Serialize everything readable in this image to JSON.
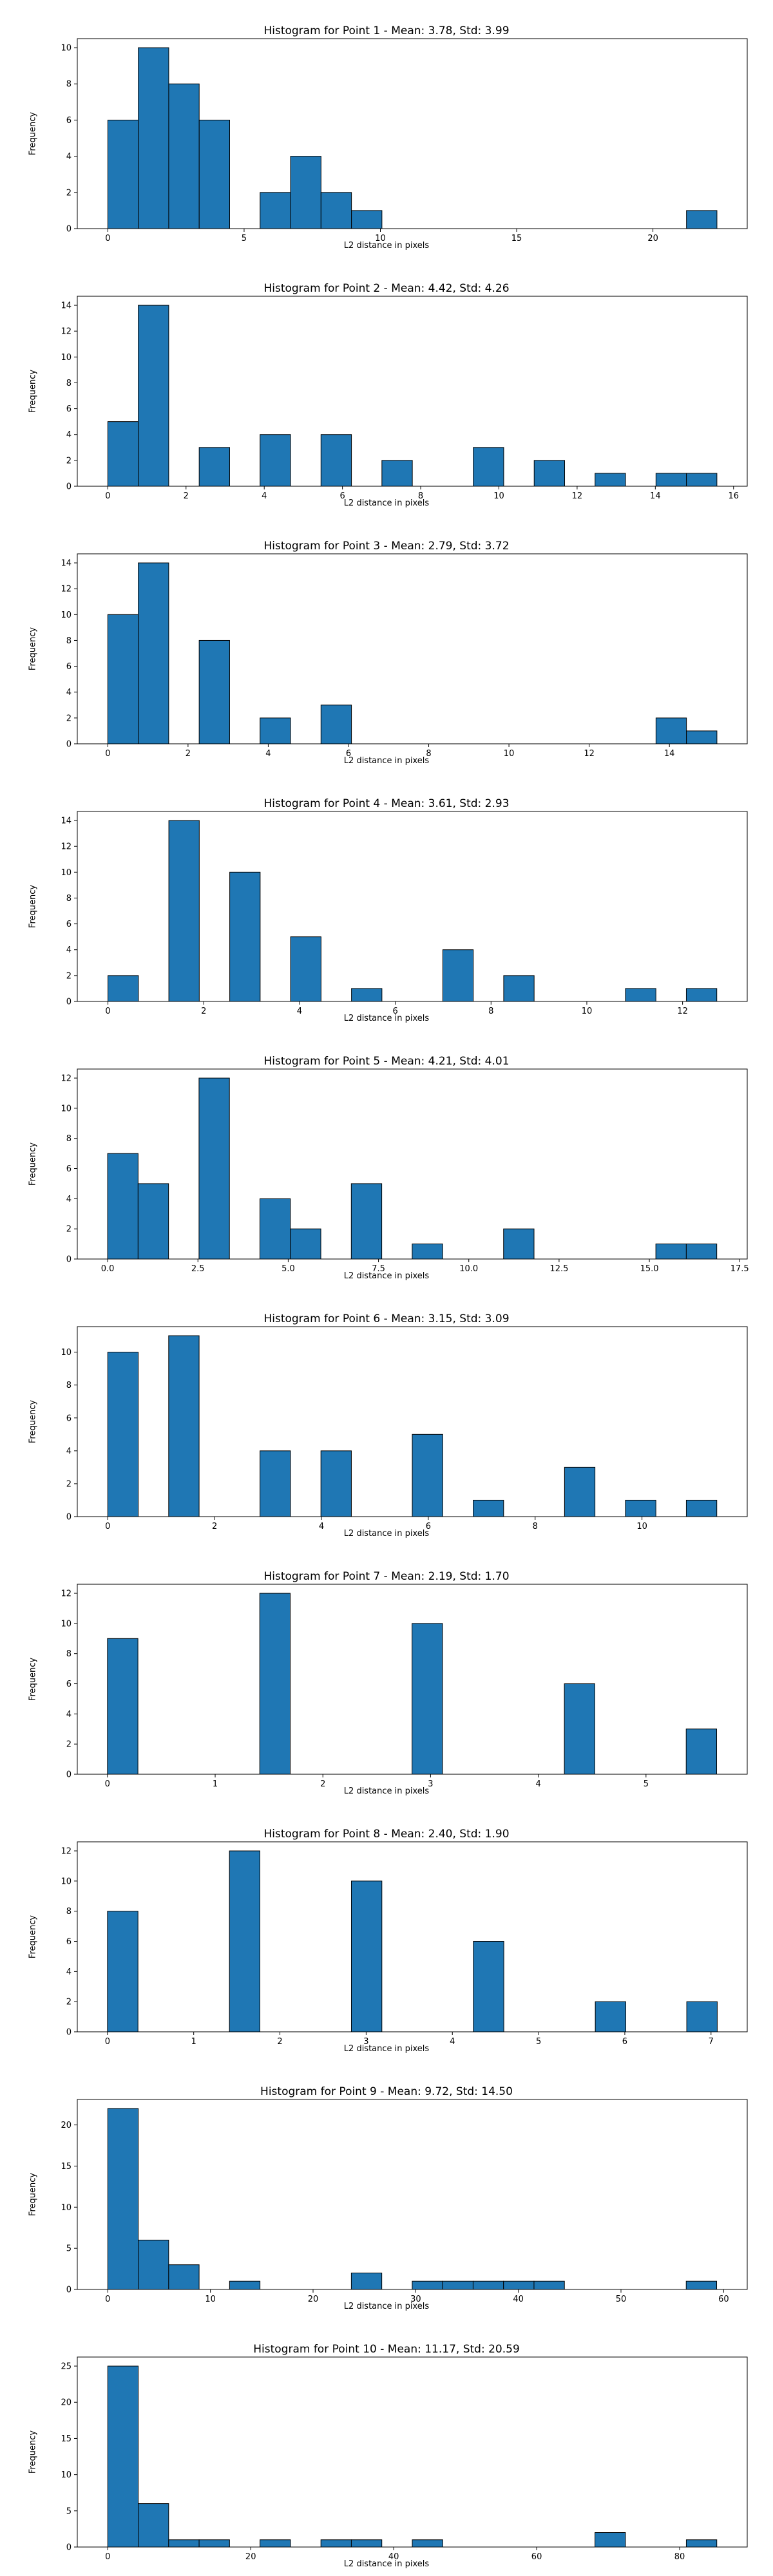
{
  "chart_data": [
    {
      "type": "bar",
      "title": "Histogram for Point 1 - Mean: 3.78, Std: 3.99",
      "xlabel": "L2 distance in pixels",
      "ylabel": "Frequency",
      "xlim": [
        -1.12,
        23.46
      ],
      "ylim": [
        0,
        10.5
      ],
      "xticks": [
        0,
        5,
        10,
        15,
        20
      ],
      "xtick_labels": [
        "0",
        "5",
        "10",
        "15",
        "20"
      ],
      "yticks": [
        0,
        2,
        4,
        6,
        8,
        10
      ],
      "ytick_labels": [
        "0",
        "2",
        "4",
        "6",
        "8",
        "10"
      ],
      "bin_start": 0,
      "bin_width": 1.1174,
      "values": [
        6,
        10,
        8,
        6,
        0,
        2,
        4,
        2,
        1,
        0,
        0,
        0,
        0,
        0,
        0,
        0,
        0,
        0,
        0,
        1
      ],
      "grid": false,
      "bar_color": "#1f77b4",
      "edge_color": "#000000"
    },
    {
      "type": "bar",
      "title": "Histogram for Point 2 - Mean: 4.42, Std: 4.26",
      "xlabel": "L2 distance in pixels",
      "ylabel": "Frequency",
      "xlim": [
        -0.78,
        16.35
      ],
      "ylim": [
        0,
        14.7
      ],
      "xticks": [
        0,
        2,
        4,
        6,
        8,
        10,
        12,
        14,
        16
      ],
      "xtick_labels": [
        "0",
        "2",
        "4",
        "6",
        "8",
        "10",
        "12",
        "14",
        "16"
      ],
      "yticks": [
        0,
        2,
        4,
        6,
        8,
        10,
        12,
        14
      ],
      "ytick_labels": [
        "0",
        "2",
        "4",
        "6",
        "8",
        "10",
        "12",
        "14"
      ],
      "bin_start": 0,
      "bin_width": 0.7787,
      "values": [
        5,
        14,
        0,
        3,
        0,
        4,
        0,
        4,
        0,
        2,
        0,
        0,
        3,
        0,
        2,
        0,
        1,
        0,
        1,
        1
      ],
      "grid": false,
      "bar_color": "#1f77b4",
      "edge_color": "#000000"
    },
    {
      "type": "bar",
      "title": "Histogram for Point 3 - Mean: 2.79, Std: 3.72",
      "xlabel": "L2 distance in pixels",
      "ylabel": "Frequency",
      "xlim": [
        -0.76,
        15.94
      ],
      "ylim": [
        0,
        14.7
      ],
      "xticks": [
        0,
        2,
        4,
        6,
        8,
        10,
        12,
        14
      ],
      "xtick_labels": [
        "0",
        "2",
        "4",
        "6",
        "8",
        "10",
        "12",
        "14"
      ],
      "yticks": [
        0,
        2,
        4,
        6,
        8,
        10,
        12,
        14
      ],
      "ytick_labels": [
        "0",
        "2",
        "4",
        "6",
        "8",
        "10",
        "12",
        "14"
      ],
      "bin_start": 0,
      "bin_width": 0.7592,
      "values": [
        10,
        14,
        0,
        8,
        0,
        2,
        0,
        3,
        0,
        0,
        0,
        0,
        0,
        0,
        0,
        0,
        0,
        0,
        2,
        1
      ],
      "grid": false,
      "bar_color": "#1f77b4",
      "edge_color": "#000000"
    },
    {
      "type": "bar",
      "title": "Histogram for Point 4 - Mean: 3.61, Std: 2.93",
      "xlabel": "L2 distance in pixels",
      "ylabel": "Frequency",
      "xlim": [
        -0.64,
        13.35
      ],
      "ylim": [
        0,
        14.7
      ],
      "xticks": [
        0,
        2,
        4,
        6,
        8,
        10,
        12
      ],
      "xtick_labels": [
        "0",
        "2",
        "4",
        "6",
        "8",
        "10",
        "12"
      ],
      "yticks": [
        0,
        2,
        4,
        6,
        8,
        10,
        12,
        14
      ],
      "ytick_labels": [
        "0",
        "2",
        "4",
        "6",
        "8",
        "10",
        "12",
        "14"
      ],
      "bin_start": 0,
      "bin_width": 0.6357,
      "values": [
        2,
        0,
        14,
        0,
        10,
        0,
        5,
        0,
        1,
        0,
        0,
        4,
        0,
        2,
        0,
        0,
        0,
        1,
        0,
        1
      ],
      "grid": false,
      "bar_color": "#1f77b4",
      "edge_color": "#000000"
    },
    {
      "type": "bar",
      "title": "Histogram for Point 5 - Mean: 4.21, Std: 4.01",
      "xlabel": "L2 distance in pixels",
      "ylabel": "Frequency",
      "xlim": [
        -0.84,
        17.71
      ],
      "ylim": [
        0,
        12.6
      ],
      "xticks": [
        0,
        2.5,
        5,
        7.5,
        10,
        12.5,
        15,
        17.5
      ],
      "xtick_labels": [
        "0.0",
        "2.5",
        "5.0",
        "7.5",
        "10.0",
        "12.5",
        "15.0",
        "17.5"
      ],
      "yticks": [
        0,
        2,
        4,
        6,
        8,
        10,
        12
      ],
      "ytick_labels": [
        "0",
        "2",
        "4",
        "6",
        "8",
        "10",
        "12"
      ],
      "bin_start": 0,
      "bin_width": 0.8433,
      "values": [
        7,
        5,
        0,
        12,
        0,
        4,
        2,
        0,
        5,
        0,
        1,
        0,
        0,
        2,
        0,
        0,
        0,
        0,
        1,
        1
      ],
      "grid": false,
      "bar_color": "#1f77b4",
      "edge_color": "#000000"
    },
    {
      "type": "bar",
      "title": "Histogram for Point 6 - Mean: 3.15, Std: 3.09",
      "xlabel": "L2 distance in pixels",
      "ylabel": "Frequency",
      "xlim": [
        -0.57,
        11.97
      ],
      "ylim": [
        0,
        11.55
      ],
      "xticks": [
        0,
        2,
        4,
        6,
        8,
        10
      ],
      "xtick_labels": [
        "0",
        "2",
        "4",
        "6",
        "8",
        "10"
      ],
      "yticks": [
        0,
        2,
        4,
        6,
        8,
        10
      ],
      "ytick_labels": [
        "0",
        "2",
        "4",
        "6",
        "8",
        "10"
      ],
      "bin_start": 0,
      "bin_width": 0.57,
      "values": [
        10,
        0,
        11,
        0,
        0,
        4,
        0,
        4,
        0,
        0,
        5,
        0,
        1,
        0,
        0,
        3,
        0,
        1,
        0,
        1
      ],
      "grid": false,
      "bar_color": "#1f77b4",
      "edge_color": "#000000"
    },
    {
      "type": "bar",
      "title": "Histogram for Point 7 - Mean: 2.19, Std: 1.70",
      "xlabel": "L2 distance in pixels",
      "ylabel": "Frequency",
      "xlim": [
        -0.28,
        5.94
      ],
      "ylim": [
        0,
        12.6
      ],
      "xticks": [
        0,
        1,
        2,
        3,
        4,
        5
      ],
      "xtick_labels": [
        "0",
        "1",
        "2",
        "3",
        "4",
        "5"
      ],
      "yticks": [
        0,
        2,
        4,
        6,
        8,
        10,
        12
      ],
      "ytick_labels": [
        "0",
        "2",
        "4",
        "6",
        "8",
        "10",
        "12"
      ],
      "bin_start": 0,
      "bin_width": 0.2828,
      "values": [
        9,
        0,
        0,
        0,
        0,
        12,
        0,
        0,
        0,
        0,
        10,
        0,
        0,
        0,
        0,
        6,
        0,
        0,
        0,
        3
      ],
      "grid": false,
      "bar_color": "#1f77b4",
      "edge_color": "#000000"
    },
    {
      "type": "bar",
      "title": "Histogram for Point 8 - Mean: 2.40, Std: 1.90",
      "xlabel": "L2 distance in pixels",
      "ylabel": "Frequency",
      "xlim": [
        -0.35,
        7.42
      ],
      "ylim": [
        0,
        12.6
      ],
      "xticks": [
        0,
        1,
        2,
        3,
        4,
        5,
        6,
        7
      ],
      "xtick_labels": [
        "0",
        "1",
        "2",
        "3",
        "4",
        "5",
        "6",
        "7"
      ],
      "yticks": [
        0,
        2,
        4,
        6,
        8,
        10,
        12
      ],
      "ytick_labels": [
        "0",
        "2",
        "4",
        "6",
        "8",
        "10",
        "12"
      ],
      "bin_start": 0,
      "bin_width": 0.3536,
      "values": [
        8,
        0,
        0,
        0,
        12,
        0,
        0,
        0,
        10,
        0,
        0,
        0,
        6,
        0,
        0,
        0,
        2,
        0,
        0,
        2
      ],
      "grid": false,
      "bar_color": "#1f77b4",
      "edge_color": "#000000"
    },
    {
      "type": "bar",
      "title": "Histogram for Point 9 - Mean: 9.72, Std: 14.50",
      "xlabel": "L2 distance in pixels",
      "ylabel": "Frequency",
      "xlim": [
        -2.97,
        62.3
      ],
      "ylim": [
        0,
        23.1
      ],
      "xticks": [
        0,
        10,
        20,
        30,
        40,
        50,
        60
      ],
      "xtick_labels": [
        "0",
        "10",
        "20",
        "30",
        "40",
        "50",
        "60"
      ],
      "yticks": [
        0,
        5,
        10,
        15,
        20
      ],
      "ytick_labels": [
        "0",
        "5",
        "10",
        "15",
        "20"
      ],
      "bin_start": 0,
      "bin_width": 2.966,
      "values": [
        22,
        6,
        3,
        0,
        1,
        0,
        0,
        0,
        2,
        0,
        1,
        1,
        1,
        1,
        1,
        0,
        0,
        0,
        0,
        1
      ],
      "grid": false,
      "bar_color": "#1f77b4",
      "edge_color": "#000000"
    },
    {
      "type": "bar",
      "title": "Histogram for Point 10 - Mean: 11.17, Std: 20.59",
      "xlabel": "L2 distance in pixels",
      "ylabel": "Frequency",
      "xlim": [
        -4.26,
        89.46
      ],
      "ylim": [
        0,
        26.25
      ],
      "xticks": [
        0,
        20,
        40,
        60,
        80
      ],
      "xtick_labels": [
        "0",
        "20",
        "40",
        "60",
        "80"
      ],
      "yticks": [
        0,
        5,
        10,
        15,
        20,
        25
      ],
      "ytick_labels": [
        "0",
        "5",
        "10",
        "15",
        "20",
        "25"
      ],
      "bin_start": 0,
      "bin_width": 4.26,
      "values": [
        25,
        6,
        1,
        1,
        0,
        1,
        0,
        1,
        1,
        0,
        1,
        0,
        0,
        0,
        0,
        0,
        2,
        0,
        0,
        1
      ],
      "grid": false,
      "bar_color": "#1f77b4",
      "edge_color": "#000000"
    }
  ]
}
